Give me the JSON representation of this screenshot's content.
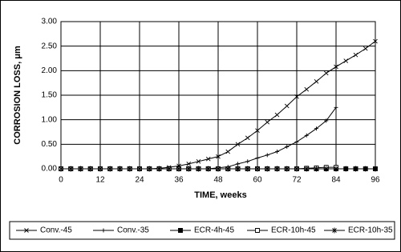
{
  "chart_data": {
    "type": "line",
    "xlabel": "TIME, weeks",
    "ylabel": "CORROSION LOSS, μm",
    "x": [
      0,
      3,
      6,
      9,
      12,
      15,
      18,
      21,
      24,
      27,
      30,
      33,
      36,
      39,
      42,
      45,
      48,
      51,
      54,
      57,
      60,
      63,
      66,
      69,
      72,
      75,
      78,
      81,
      84,
      87,
      90,
      93,
      96
    ],
    "series": [
      {
        "name": "Conv.-45",
        "color": "#000000",
        "marker": "x",
        "values": [
          0,
          0,
          0,
          0,
          0,
          0,
          0,
          0,
          0,
          0,
          0.01,
          0.03,
          0.06,
          0.1,
          0.15,
          0.2,
          0.25,
          0.35,
          0.5,
          0.63,
          0.78,
          0.95,
          1.1,
          1.28,
          1.47,
          1.62,
          1.78,
          1.95,
          2.08,
          2.2,
          2.32,
          2.45,
          2.6
        ]
      },
      {
        "name": "Conv.-35",
        "color": "#000000",
        "marker": "plus",
        "values": [
          0,
          0,
          0,
          0,
          0,
          0,
          0,
          0,
          0,
          0,
          0,
          0,
          0,
          0,
          0,
          0,
          0.02,
          0.04,
          0.1,
          0.15,
          0.22,
          0.28,
          0.35,
          0.45,
          0.55,
          0.68,
          0.82,
          0.98,
          1.25,
          null,
          null,
          null,
          null
        ]
      },
      {
        "name": "ECR-4h-45",
        "color": "#000000",
        "marker": "filled-square",
        "values": [
          0,
          0,
          0,
          0,
          0,
          0,
          0,
          0,
          0,
          0,
          0,
          0,
          0,
          0,
          0,
          0,
          0,
          0,
          0,
          0,
          0,
          0,
          0,
          0,
          0,
          0,
          0,
          0,
          0,
          0,
          0,
          0,
          0
        ]
      },
      {
        "name": "ECR-10h-45",
        "color": "#000000",
        "marker": "open-square",
        "values": [
          0,
          0,
          0,
          0,
          0,
          0,
          0,
          0,
          0,
          0,
          0,
          0,
          0,
          0,
          0,
          0,
          0,
          0,
          0,
          0,
          0,
          0,
          0,
          0,
          0,
          0.01,
          0.02,
          0.03,
          0.03,
          null,
          null,
          null,
          null
        ]
      },
      {
        "name": "ECR-10h-35",
        "color": "#000000",
        "marker": "asterisk",
        "values": [
          0,
          0,
          0,
          0,
          0,
          0,
          0,
          0,
          0,
          0,
          0,
          0,
          0,
          0,
          0,
          0,
          0,
          0,
          0,
          0,
          0,
          0,
          0,
          0,
          0,
          0,
          0,
          0,
          0,
          0,
          0,
          0,
          0
        ]
      }
    ],
    "xlim": [
      0,
      96
    ],
    "xticks": [
      0,
      12,
      24,
      36,
      48,
      60,
      72,
      84,
      96
    ],
    "ylim": [
      0,
      3
    ],
    "yticks": [
      {
        "value": 0,
        "label": "0.00"
      },
      {
        "value": 0.5,
        "label": "0.50"
      },
      {
        "value": 1,
        "label": "1.00"
      },
      {
        "value": 1.5,
        "label": "1.50"
      },
      {
        "value": 2,
        "label": "2.00"
      },
      {
        "value": 2.5,
        "label": "2.50"
      },
      {
        "value": 3,
        "label": "3.00"
      }
    ],
    "grid": true,
    "legend": "bottom"
  }
}
